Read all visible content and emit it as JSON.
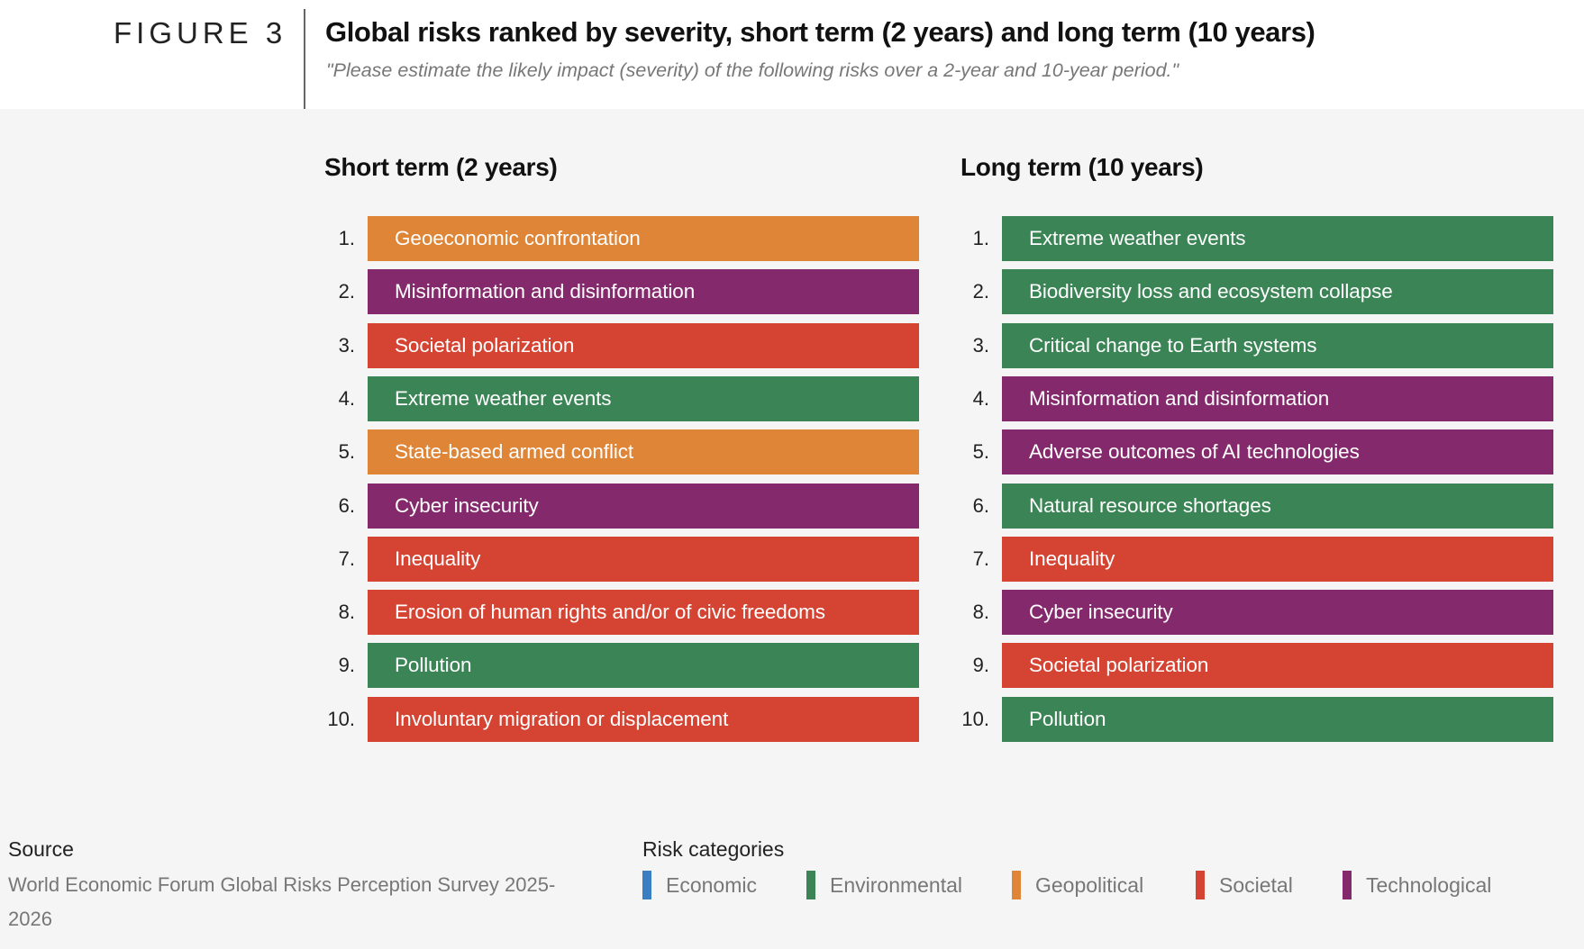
{
  "figure_label": "FIGURE 3",
  "title": "Global risks ranked by severity, short term (2 years) and long term (10 years)",
  "subtitle": "\"Please estimate the likely impact (severity) of the following risks over a 2-year and 10-year period.\"",
  "colors": {
    "Economic": "#3a7fc4",
    "Environmental": "#3a8455",
    "Geopolitical": "#de8538",
    "Societal": "#d54433",
    "Technological": "#84296c"
  },
  "chart_data": [
    {
      "type": "table",
      "title": "Short term (2 years)",
      "ranks": [
        "1.",
        "2.",
        "3.",
        "4.",
        "5.",
        "6.",
        "7.",
        "8.",
        "9.",
        "10."
      ],
      "items": [
        {
          "label": "Geoeconomic confrontation",
          "category": "Geopolitical"
        },
        {
          "label": "Misinformation and disinformation",
          "category": "Technological"
        },
        {
          "label": "Societal polarization",
          "category": "Societal"
        },
        {
          "label": "Extreme weather events",
          "category": "Environmental"
        },
        {
          "label": "State-based armed conflict",
          "category": "Geopolitical"
        },
        {
          "label": "Cyber insecurity",
          "category": "Technological"
        },
        {
          "label": "Inequality",
          "category": "Societal"
        },
        {
          "label": "Erosion of human rights and/or of civic freedoms",
          "category": "Societal"
        },
        {
          "label": "Pollution",
          "category": "Environmental"
        },
        {
          "label": "Involuntary migration or displacement",
          "category": "Societal"
        }
      ]
    },
    {
      "type": "table",
      "title": "Long term (10 years)",
      "ranks": [
        "1.",
        "2.",
        "3.",
        "4.",
        "5.",
        "6.",
        "7.",
        "8.",
        "9.",
        "10."
      ],
      "items": [
        {
          "label": "Extreme weather events",
          "category": "Environmental"
        },
        {
          "label": "Biodiversity loss and ecosystem collapse",
          "category": "Environmental"
        },
        {
          "label": "Critical change to Earth systems",
          "category": "Environmental"
        },
        {
          "label": "Misinformation and disinformation",
          "category": "Technological"
        },
        {
          "label": "Adverse outcomes of AI technologies",
          "category": "Technological"
        },
        {
          "label": "Natural resource shortages",
          "category": "Environmental"
        },
        {
          "label": "Inequality",
          "category": "Societal"
        },
        {
          "label": "Cyber insecurity",
          "category": "Technological"
        },
        {
          "label": "Societal polarization",
          "category": "Societal"
        },
        {
          "label": "Pollution",
          "category": "Environmental"
        }
      ]
    }
  ],
  "source": {
    "label": "Source",
    "text": "World Economic Forum Global Risks Perception Survey 2025-2026"
  },
  "legend": {
    "title": "Risk categories",
    "items": [
      "Economic",
      "Environmental",
      "Geopolitical",
      "Societal",
      "Technological"
    ]
  }
}
